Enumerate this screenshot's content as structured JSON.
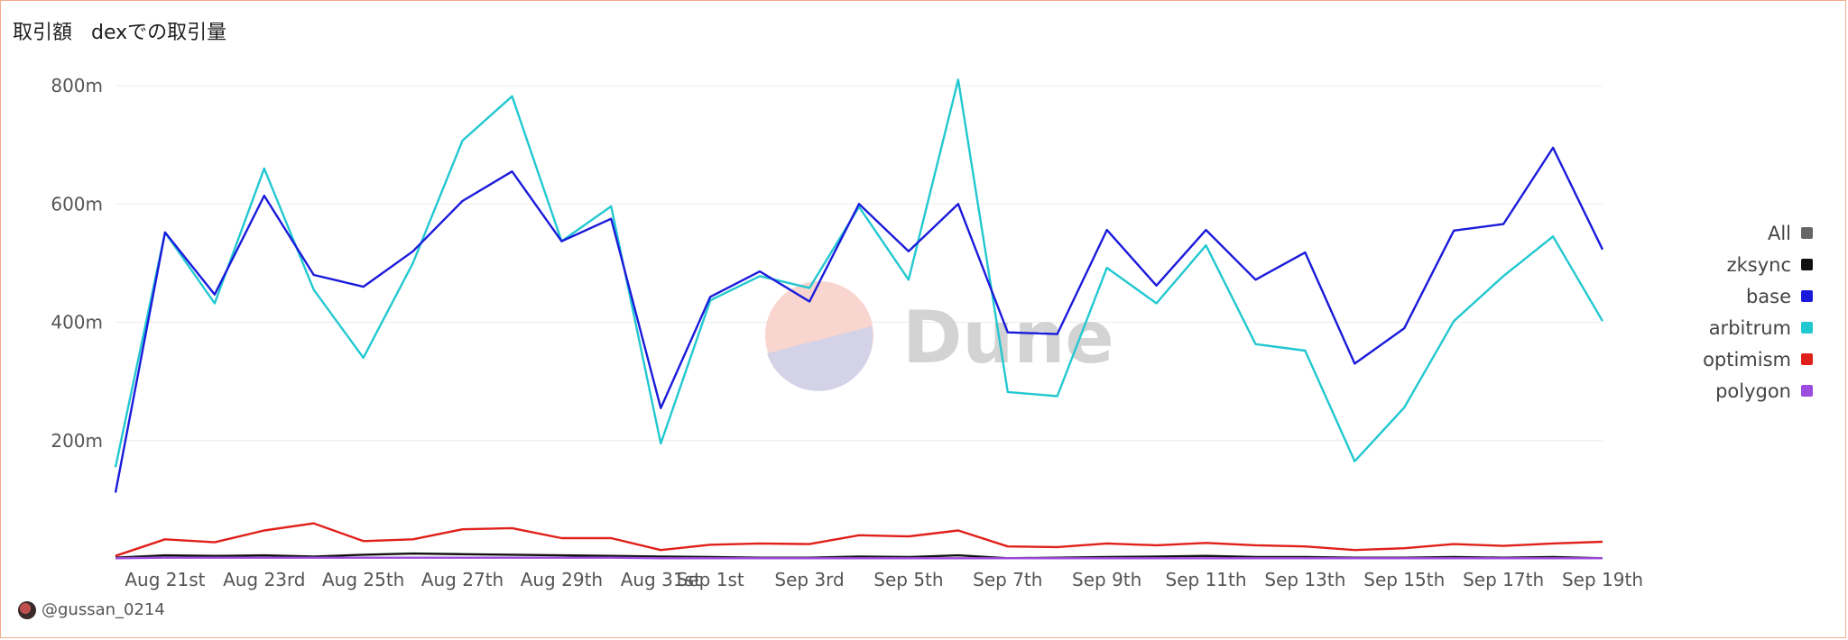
{
  "title": "取引額   dexでの取引量",
  "author": "@gussan_0214",
  "watermark": "Dune",
  "chart_data": {
    "type": "line",
    "x": [
      "Aug 20",
      "Aug 21",
      "Aug 22",
      "Aug 23",
      "Aug 24",
      "Aug 25",
      "Aug 26",
      "Aug 27",
      "Aug 28",
      "Aug 29",
      "Aug 30",
      "Aug 31",
      "Sep 1",
      "Sep 2",
      "Sep 3",
      "Sep 4",
      "Sep 5",
      "Sep 6",
      "Sep 7",
      "Sep 8",
      "Sep 9",
      "Sep 10",
      "Sep 11",
      "Sep 12",
      "Sep 13",
      "Sep 14",
      "Sep 15",
      "Sep 16",
      "Sep 17",
      "Sep 18",
      "Sep 19"
    ],
    "xtick_labels": [
      {
        "index": 1,
        "label": "Aug 21st"
      },
      {
        "index": 3,
        "label": "Aug 23rd"
      },
      {
        "index": 5,
        "label": "Aug 25th"
      },
      {
        "index": 7,
        "label": "Aug 27th"
      },
      {
        "index": 9,
        "label": "Aug 29th"
      },
      {
        "index": 11,
        "label": "Aug 31st"
      },
      {
        "index": 12,
        "label": "Sep 1st"
      },
      {
        "index": 14,
        "label": "Sep 3rd"
      },
      {
        "index": 16,
        "label": "Sep 5th"
      },
      {
        "index": 18,
        "label": "Sep 7th"
      },
      {
        "index": 20,
        "label": "Sep 9th"
      },
      {
        "index": 22,
        "label": "Sep 11th"
      },
      {
        "index": 24,
        "label": "Sep 13th"
      },
      {
        "index": 26,
        "label": "Sep 15th"
      },
      {
        "index": 28,
        "label": "Sep 17th"
      },
      {
        "index": 30,
        "label": "Sep 19th"
      }
    ],
    "yticks": [
      {
        "value": 200,
        "label": "200m"
      },
      {
        "value": 400,
        "label": "400m"
      },
      {
        "value": 600,
        "label": "600m"
      },
      {
        "value": 800,
        "label": "800m"
      }
    ],
    "ylim": [
      0,
      800
    ],
    "grid": true,
    "legend_position": "right",
    "legend": [
      {
        "name": "All",
        "color": "#666666"
      },
      {
        "name": "zksync",
        "color": "#111111"
      },
      {
        "name": "base",
        "color": "#1a1adb"
      },
      {
        "name": "arbitrum",
        "color": "#22c8d0"
      },
      {
        "name": "optimism",
        "color": "#e0201a"
      },
      {
        "name": "polygon",
        "color": "#9b4de0"
      }
    ],
    "series": [
      {
        "name": "arbitrum",
        "color": "#22c8d0",
        "values": [
          155,
          552,
          432,
          660,
          455,
          340,
          500,
          707,
          782,
          537,
          596,
          195,
          437,
          478,
          458,
          595,
          472,
          810,
          282,
          275,
          492,
          432,
          530,
          363,
          352,
          165,
          256,
          402,
          478,
          545,
          402
        ]
      },
      {
        "name": "base",
        "color": "#1a1adb",
        "values": [
          112,
          552,
          447,
          614,
          480,
          460,
          520,
          605,
          655,
          537,
          575,
          255,
          443,
          486,
          435,
          600,
          520,
          600,
          383,
          380,
          556,
          462,
          556,
          472,
          518,
          330,
          390,
          555,
          566,
          695,
          523
        ]
      },
      {
        "name": "optimism",
        "color": "#e0201a",
        "values": [
          5,
          33,
          28,
          48,
          60,
          30,
          33,
          50,
          52,
          35,
          35,
          15,
          24,
          26,
          25,
          40,
          38,
          48,
          21,
          20,
          26,
          23,
          27,
          23,
          21,
          15,
          18,
          25,
          22,
          26,
          29
        ]
      },
      {
        "name": "zksync",
        "color": "#111111",
        "values": [
          2,
          6,
          5,
          6,
          4,
          7,
          9,
          8,
          7,
          6,
          5,
          4,
          3,
          2,
          2,
          4,
          3,
          6,
          1,
          2,
          3,
          4,
          5,
          3,
          3,
          2,
          2,
          3,
          2,
          3,
          1
        ]
      },
      {
        "name": "polygon",
        "color": "#9b4de0",
        "values": [
          1,
          2,
          2,
          2,
          2,
          2,
          2,
          2,
          2,
          2,
          2,
          1,
          1,
          1,
          1,
          1,
          1,
          1,
          1,
          1,
          1,
          1,
          1,
          1,
          1,
          1,
          1,
          1,
          1,
          1,
          1
        ]
      }
    ]
  }
}
